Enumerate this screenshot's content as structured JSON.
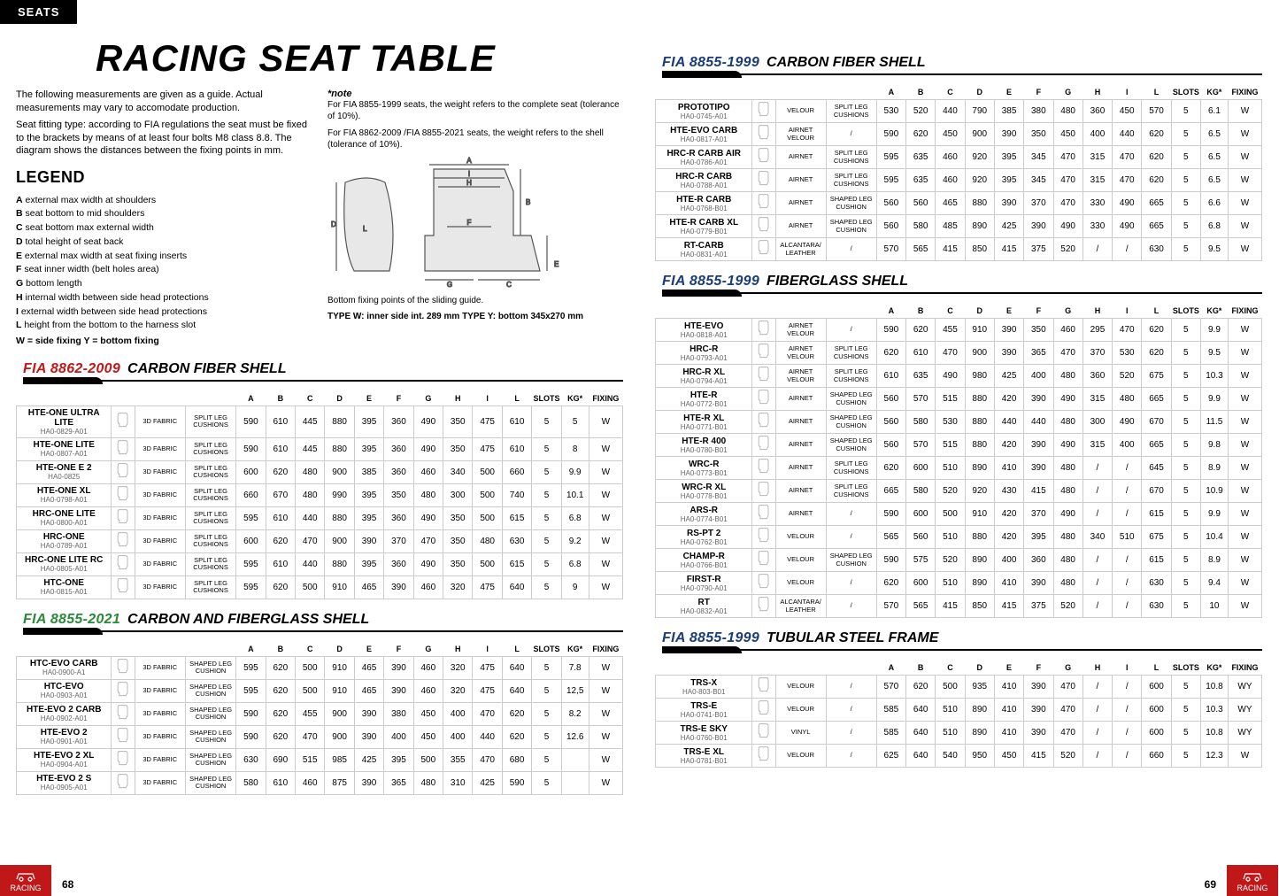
{
  "header": {
    "tab": "SEATS",
    "title": "RACING SEAT TABLE"
  },
  "intro": {
    "para1": "The following measurements are given as a guide. Actual measurements may vary to accomodate production.",
    "para2": "Seat fitting type: according to FIA regulations the seat must be fixed to the brackets by means of at least four bolts M8 class 8.8. The diagram shows the distances between the fixing points in mm."
  },
  "legend": {
    "title": "LEGEND",
    "items": [
      {
        "k": "A",
        "v": "external max width at shoulders"
      },
      {
        "k": "B",
        "v": "seat bottom to mid shoulders"
      },
      {
        "k": "C",
        "v": "seat bottom max external width"
      },
      {
        "k": "D",
        "v": "total height of seat back"
      },
      {
        "k": "E",
        "v": "external max width at seat fixing inserts"
      },
      {
        "k": "F",
        "v": "seat inner width (belt holes area)"
      },
      {
        "k": "G",
        "v": "bottom length"
      },
      {
        "k": "H",
        "v": "internal width between side head protections"
      },
      {
        "k": "I",
        "v": " external width between side head protections"
      },
      {
        "k": "L",
        "v": "height from the bottom to the harness slot"
      }
    ],
    "wy": "W = side fixing   Y = bottom fixing"
  },
  "note": {
    "label": "*note",
    "l1": "For FIA 8855-1999 seats, the weight refers to the complete seat (tolerance of 10%).",
    "l2": "For FIA 8862-2009 /FIA 8855-2021 seats, the weight refers to the shell (tolerance of 10%).",
    "bottom1": "Bottom fixing points of the sliding guide.",
    "bottom2": "TYPE W: inner side int. 289 mm TYPE Y: bottom 345x270 mm"
  },
  "headers": [
    "A",
    "B",
    "C",
    "D",
    "E",
    "F",
    "G",
    "H",
    "I",
    "L",
    "SLOTS",
    "KG*",
    "FIXING"
  ],
  "sections": {
    "s1": {
      "fia": "FIA 8862-2009",
      "shell": "CARBON FIBER SHELL",
      "cls": "red"
    },
    "s2": {
      "fia": "FIA 8855-2021",
      "shell": "CARBON AND FIBERGLASS SHELL",
      "cls": "green"
    },
    "s3": {
      "fia": "FIA 8855-1999",
      "shell": "CARBON FIBER SHELL",
      "cls": ""
    },
    "s4": {
      "fia": "FIA 8855-1999",
      "shell": "FIBERGLASS SHELL",
      "cls": ""
    },
    "s5": {
      "fia": "FIA 8855-1999",
      "shell": "TUBULAR STEEL FRAME",
      "cls": ""
    }
  },
  "t1": [
    {
      "m": "HTE-ONE ULTRA LITE",
      "c": "HA0-0829-A01",
      "f1": "3D FABRIC",
      "f2": "SPLIT LEG CUSHIONS",
      "d": [
        "590",
        "610",
        "445",
        "880",
        "395",
        "360",
        "490",
        "350",
        "475",
        "610",
        "5",
        "5",
        "W"
      ]
    },
    {
      "m": "HTE-ONE LITE",
      "c": "HA0-0807-A01",
      "f1": "3D FABRIC",
      "f2": "SPLIT LEG CUSHIONS",
      "d": [
        "590",
        "610",
        "445",
        "880",
        "395",
        "360",
        "490",
        "350",
        "475",
        "610",
        "5",
        "8",
        "W"
      ]
    },
    {
      "m": "HTE-ONE E 2",
      "c": "HA0-0825",
      "f1": "3D FABRIC",
      "f2": "SPLIT LEG CUSHIONS",
      "d": [
        "600",
        "620",
        "480",
        "900",
        "385",
        "360",
        "460",
        "340",
        "500",
        "660",
        "5",
        "9.9",
        "W"
      ]
    },
    {
      "m": "HTE-ONE XL",
      "c": "HA0-0798-A01",
      "f1": "3D FABRIC",
      "f2": "SPLIT LEG CUSHIONS",
      "d": [
        "660",
        "670",
        "480",
        "990",
        "395",
        "350",
        "480",
        "300",
        "500",
        "740",
        "5",
        "10.1",
        "W"
      ]
    },
    {
      "m": "HRC-ONE LITE",
      "c": "HA0-0800-A01",
      "f1": "3D FABRIC",
      "f2": "SPLIT LEG CUSHIONS",
      "d": [
        "595",
        "610",
        "440",
        "880",
        "395",
        "360",
        "490",
        "350",
        "500",
        "615",
        "5",
        "6.8",
        "W"
      ]
    },
    {
      "m": "HRC-ONE",
      "c": "HA0-0789-A01",
      "f1": "3D FABRIC",
      "f2": "SPLIT LEG CUSHIONS",
      "d": [
        "600",
        "620",
        "470",
        "900",
        "390",
        "370",
        "470",
        "350",
        "480",
        "630",
        "5",
        "9.2",
        "W"
      ]
    },
    {
      "m": "HRC-ONE LITE RC",
      "c": "HA0-0805-A01",
      "f1": "3D FABRIC",
      "f2": "SPLIT LEG CUSHIONS",
      "d": [
        "595",
        "610",
        "440",
        "880",
        "395",
        "360",
        "490",
        "350",
        "500",
        "615",
        "5",
        "6.8",
        "W"
      ]
    },
    {
      "m": "HTC-ONE",
      "c": "HA0-0815-A01",
      "f1": "3D FABRIC",
      "f2": "SPLIT LEG CUSHIONS",
      "d": [
        "595",
        "620",
        "500",
        "910",
        "465",
        "390",
        "460",
        "320",
        "475",
        "640",
        "5",
        "9",
        "W"
      ]
    }
  ],
  "t2": [
    {
      "m": "HTC-EVO CARB",
      "c": "HA0-0900-A1",
      "f1": "3D FABRIC",
      "f2": "SHAPED LEG CUSHION",
      "d": [
        "595",
        "620",
        "500",
        "910",
        "465",
        "390",
        "460",
        "320",
        "475",
        "640",
        "5",
        "7.8",
        "W"
      ]
    },
    {
      "m": "HTC-EVO",
      "c": "HA0-0903-A01",
      "f1": "3D FABRIC",
      "f2": "SHAPED LEG CUSHION",
      "d": [
        "595",
        "620",
        "500",
        "910",
        "465",
        "390",
        "460",
        "320",
        "475",
        "640",
        "5",
        "12,5",
        "W"
      ]
    },
    {
      "m": "HTE-EVO 2 CARB",
      "c": "HA0-0902-A01",
      "f1": "3D FABRIC",
      "f2": "SHAPED LEG CUSHION",
      "d": [
        "590",
        "620",
        "455",
        "900",
        "390",
        "380",
        "450",
        "400",
        "470",
        "620",
        "5",
        "8.2",
        "W"
      ]
    },
    {
      "m": "HTE-EVO 2",
      "c": "HA0-0901-A01",
      "f1": "3D FABRIC",
      "f2": "SHAPED LEG CUSHION",
      "d": [
        "590",
        "620",
        "470",
        "900",
        "390",
        "400",
        "450",
        "400",
        "440",
        "620",
        "5",
        "12.6",
        "W"
      ]
    },
    {
      "m": "HTE-EVO 2 XL",
      "c": "HA0-0904-A01",
      "f1": "3D FABRIC",
      "f2": "SHAPED LEG CUSHION",
      "d": [
        "630",
        "690",
        "515",
        "985",
        "425",
        "395",
        "500",
        "355",
        "470",
        "680",
        "5",
        "",
        "W"
      ]
    },
    {
      "m": "HTE-EVO 2 S",
      "c": "HA0-0905-A01",
      "f1": "3D FABRIC",
      "f2": "SHAPED LEG CUSHION",
      "d": [
        "580",
        "610",
        "460",
        "875",
        "390",
        "365",
        "480",
        "310",
        "425",
        "590",
        "5",
        "",
        "W"
      ]
    }
  ],
  "t3": [
    {
      "m": "PROTOTIPO",
      "c": "HA0-0745-A01",
      "f1": "VELOUR",
      "f2": "SPLIT LEG CUSHIONS",
      "d": [
        "530",
        "520",
        "440",
        "790",
        "385",
        "380",
        "480",
        "360",
        "450",
        "570",
        "5",
        "6.1",
        "W"
      ]
    },
    {
      "m": "HTE-EVO CARB",
      "c": "HA0-0817-A01",
      "f1": "AIRNET VELOUR",
      "f2": "/",
      "d": [
        "590",
        "620",
        "450",
        "900",
        "390",
        "350",
        "450",
        "400",
        "440",
        "620",
        "5",
        "6.5",
        "W"
      ]
    },
    {
      "m": "HRC-R CARB AIR",
      "c": "HA0-0786-A01",
      "f1": "AIRNET",
      "f2": "SPLIT LEG CUSHIONS",
      "d": [
        "595",
        "635",
        "460",
        "920",
        "395",
        "345",
        "470",
        "315",
        "470",
        "620",
        "5",
        "6.5",
        "W"
      ]
    },
    {
      "m": "HRC-R CARB",
      "c": "HA0-0788-A01",
      "f1": "AIRNET",
      "f2": "SPLIT LEG CUSHIONS",
      "d": [
        "595",
        "635",
        "460",
        "920",
        "395",
        "345",
        "470",
        "315",
        "470",
        "620",
        "5",
        "6.5",
        "W"
      ]
    },
    {
      "m": "HTE-R CARB",
      "c": "HA0-0768-B01",
      "f1": "AIRNET",
      "f2": "SHAPED LEG CUSHION",
      "d": [
        "560",
        "560",
        "465",
        "880",
        "390",
        "370",
        "470",
        "330",
        "490",
        "665",
        "5",
        "6.6",
        "W"
      ]
    },
    {
      "m": "HTE-R CARB XL",
      "c": "HA0-0779-B01",
      "f1": "AIRNET",
      "f2": "SHAPED LEG CUSHION",
      "d": [
        "560",
        "580",
        "485",
        "890",
        "425",
        "390",
        "490",
        "330",
        "490",
        "665",
        "5",
        "6.8",
        "W"
      ]
    },
    {
      "m": "RT-CARB",
      "c": "HA0-0831-A01",
      "f1": "ALCANTARA/ LEATHER",
      "f2": "/",
      "d": [
        "570",
        "565",
        "415",
        "850",
        "415",
        "375",
        "520",
        "/",
        "/",
        "630",
        "5",
        "9.5",
        "W"
      ]
    }
  ],
  "t4": [
    {
      "m": "HTE-EVO",
      "c": "HA0-0818-A01",
      "f1": "AIRNET VELOUR",
      "f2": "/",
      "d": [
        "590",
        "620",
        "455",
        "910",
        "390",
        "350",
        "460",
        "295",
        "470",
        "620",
        "5",
        "9.9",
        "W"
      ]
    },
    {
      "m": "HRC-R",
      "c": "HA0-0793-A01",
      "f1": "AIRNET VELOUR",
      "f2": "SPLIT LEG CUSHIONS",
      "d": [
        "620",
        "610",
        "470",
        "900",
        "390",
        "365",
        "470",
        "370",
        "530",
        "620",
        "5",
        "9.5",
        "W"
      ]
    },
    {
      "m": "HRC-R XL",
      "c": "HA0-0794-A01",
      "f1": "AIRNET VELOUR",
      "f2": "SPLIT LEG CUSHIONS",
      "d": [
        "610",
        "635",
        "490",
        "980",
        "425",
        "400",
        "480",
        "360",
        "520",
        "675",
        "5",
        "10.3",
        "W"
      ]
    },
    {
      "m": "HTE-R",
      "c": "HA0-0772-B01",
      "f1": "AIRNET",
      "f2": "SHAPED LEG CUSHION",
      "d": [
        "560",
        "570",
        "515",
        "880",
        "420",
        "390",
        "490",
        "315",
        "480",
        "665",
        "5",
        "9.9",
        "W"
      ]
    },
    {
      "m": "HTE-R XL",
      "c": "HA0-0771-B01",
      "f1": "AIRNET",
      "f2": "SHAPED LEG CUSHION",
      "d": [
        "560",
        "580",
        "530",
        "880",
        "440",
        "440",
        "480",
        "300",
        "490",
        "670",
        "5",
        "11.5",
        "W"
      ]
    },
    {
      "m": "HTE-R 400",
      "c": "HA0-0780-B01",
      "f1": "AIRNET",
      "f2": "SHAPED LEG CUSHION",
      "d": [
        "560",
        "570",
        "515",
        "880",
        "420",
        "390",
        "490",
        "315",
        "400",
        "665",
        "5",
        "9.8",
        "W"
      ]
    },
    {
      "m": "WRC-R",
      "c": "HA0-0773-B01",
      "f1": "AIRNET",
      "f2": "SPLIT LEG CUSHIONS",
      "d": [
        "620",
        "600",
        "510",
        "890",
        "410",
        "390",
        "480",
        "/",
        "/",
        "645",
        "5",
        "8.9",
        "W"
      ]
    },
    {
      "m": "WRC-R XL",
      "c": "HA0-0778-B01",
      "f1": "AIRNET",
      "f2": "SPLIT LEG CUSHIONS",
      "d": [
        "665",
        "580",
        "520",
        "920",
        "430",
        "415",
        "480",
        "/",
        "/",
        "670",
        "5",
        "10.9",
        "W"
      ]
    },
    {
      "m": "ARS-R",
      "c": "HA0-0774-B01",
      "f1": "AIRNET",
      "f2": "/",
      "d": [
        "590",
        "600",
        "500",
        "910",
        "420",
        "370",
        "490",
        "/",
        "/",
        "615",
        "5",
        "9.9",
        "W"
      ]
    },
    {
      "m": "RS-PT 2",
      "c": "HA0-0762-B01",
      "f1": "VELOUR",
      "f2": "/",
      "d": [
        "565",
        "560",
        "510",
        "880",
        "420",
        "395",
        "480",
        "340",
        "510",
        "675",
        "5",
        "10.4",
        "W"
      ]
    },
    {
      "m": "CHAMP-R",
      "c": "HA0-0766-B01",
      "f1": "VELOUR",
      "f2": "SHAPED LEG CUSHION",
      "d": [
        "590",
        "575",
        "520",
        "890",
        "400",
        "360",
        "480",
        "/",
        "/",
        "615",
        "5",
        "8.9",
        "W"
      ]
    },
    {
      "m": "FIRST-R",
      "c": "HA0-0790-A01",
      "f1": "VELOUR",
      "f2": "/",
      "d": [
        "620",
        "600",
        "510",
        "890",
        "410",
        "390",
        "480",
        "/",
        "/",
        "630",
        "5",
        "9.4",
        "W"
      ]
    },
    {
      "m": "RT",
      "c": "HA0-0832-A01",
      "f1": "ALCANTARA/ LEATHER",
      "f2": "/",
      "d": [
        "570",
        "565",
        "415",
        "850",
        "415",
        "375",
        "520",
        "/",
        "/",
        "630",
        "5",
        "10",
        "W"
      ]
    }
  ],
  "t5": [
    {
      "m": "TRS-X",
      "c": "HA0-803-B01",
      "f1": "VELOUR",
      "f2": "/",
      "d": [
        "570",
        "620",
        "500",
        "935",
        "410",
        "390",
        "470",
        "/",
        "/",
        "600",
        "5",
        "10.8",
        "WY"
      ]
    },
    {
      "m": "TRS-E",
      "c": "HA0-0741-B01",
      "f1": "VELOUR",
      "f2": "/",
      "d": [
        "585",
        "640",
        "510",
        "890",
        "410",
        "390",
        "470",
        "/",
        "/",
        "600",
        "5",
        "10.3",
        "WY"
      ]
    },
    {
      "m": "TRS-E SKY",
      "c": "HA0-0760-B01",
      "f1": "VINYL",
      "f2": "/",
      "d": [
        "585",
        "640",
        "510",
        "890",
        "410",
        "390",
        "470",
        "/",
        "/",
        "600",
        "5",
        "10.8",
        "WY"
      ]
    },
    {
      "m": "TRS-E XL",
      "c": "HA0-0781-B01",
      "f1": "VELOUR",
      "f2": "/",
      "d": [
        "625",
        "640",
        "540",
        "950",
        "450",
        "415",
        "520",
        "/",
        "/",
        "660",
        "5",
        "12.3",
        "W"
      ]
    }
  ],
  "footer": {
    "label": "RACING",
    "pLeft": "68",
    "pRight": "69"
  }
}
